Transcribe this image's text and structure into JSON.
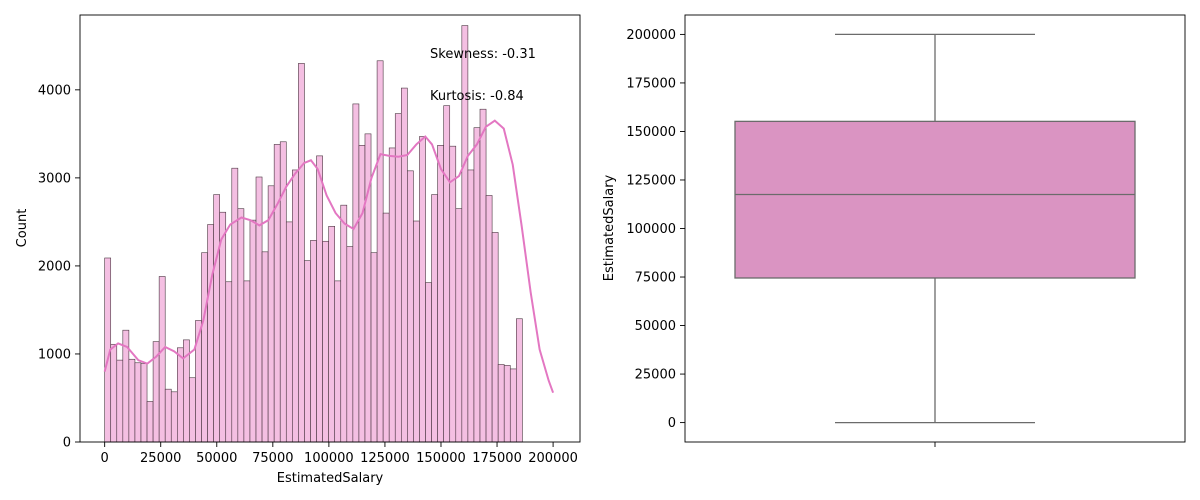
{
  "chart_data": [
    {
      "type": "histogram",
      "xlabel": "EstimatedSalary",
      "ylabel": "Count",
      "xlim": [
        -11000,
        212000
      ],
      "ylim": [
        0,
        4850
      ],
      "bin_width": 2700,
      "bin_start": 0,
      "bar_color": "#f4bfe2",
      "edge_color": "#4a3540",
      "kde_color": "#e377c2",
      "xticks": [
        0,
        25000,
        50000,
        75000,
        100000,
        125000,
        150000,
        175000,
        200000
      ],
      "yticks": [
        0,
        1000,
        2000,
        3000,
        4000
      ],
      "counts": [
        2090,
        1110,
        930,
        1270,
        940,
        900,
        890,
        460,
        1140,
        1880,
        600,
        570,
        1070,
        1160,
        730,
        1380,
        2150,
        2470,
        2810,
        2610,
        1820,
        3110,
        2650,
        1830,
        2520,
        3010,
        2160,
        2910,
        3380,
        3410,
        2500,
        3090,
        4300,
        2060,
        2290,
        3250,
        2280,
        2450,
        1830,
        2690,
        2220,
        3840,
        3370,
        3500,
        2150,
        4330,
        2600,
        3340,
        3730,
        4020,
        3080,
        2510,
        3470,
        1810,
        2810,
        3370,
        3820,
        3360,
        2650,
        4730,
        3090,
        3570,
        3780,
        2800,
        2380,
        880,
        870,
        830,
        1400
      ],
      "kde": [
        [
          0,
          800
        ],
        [
          2500,
          1050
        ],
        [
          6000,
          1120
        ],
        [
          10000,
          1080
        ],
        [
          15000,
          930
        ],
        [
          19000,
          890
        ],
        [
          23000,
          970
        ],
        [
          27000,
          1080
        ],
        [
          31000,
          1030
        ],
        [
          35000,
          950
        ],
        [
          40000,
          1050
        ],
        [
          44000,
          1380
        ],
        [
          48000,
          1900
        ],
        [
          52000,
          2300
        ],
        [
          56000,
          2470
        ],
        [
          61000,
          2550
        ],
        [
          65000,
          2520
        ],
        [
          69000,
          2460
        ],
        [
          73000,
          2520
        ],
        [
          77000,
          2700
        ],
        [
          81000,
          2900
        ],
        [
          85000,
          3050
        ],
        [
          89000,
          3170
        ],
        [
          92000,
          3200
        ],
        [
          95000,
          3100
        ],
        [
          99000,
          2800
        ],
        [
          103000,
          2600
        ],
        [
          107000,
          2480
        ],
        [
          111000,
          2420
        ],
        [
          115000,
          2600
        ],
        [
          119000,
          3000
        ],
        [
          123000,
          3270
        ],
        [
          127000,
          3250
        ],
        [
          131000,
          3240
        ],
        [
          135000,
          3260
        ],
        [
          139000,
          3380
        ],
        [
          143000,
          3470
        ],
        [
          146000,
          3380
        ],
        [
          150000,
          3100
        ],
        [
          154000,
          2950
        ],
        [
          158000,
          3020
        ],
        [
          162000,
          3250
        ],
        [
          166000,
          3380
        ],
        [
          170000,
          3580
        ],
        [
          174000,
          3650
        ],
        [
          178000,
          3560
        ],
        [
          182000,
          3150
        ],
        [
          186000,
          2450
        ],
        [
          190000,
          1700
        ],
        [
          194000,
          1050
        ],
        [
          198000,
          700
        ],
        [
          200000,
          560
        ]
      ],
      "annotations": [
        "Skewness: -0.31",
        "Kurtosis: -0.84"
      ]
    },
    {
      "type": "box",
      "ylabel": "EstimatedSalary",
      "ylim": [
        -10000,
        210000
      ],
      "yticks": [
        0,
        25000,
        50000,
        75000,
        100000,
        125000,
        150000,
        175000,
        200000
      ],
      "box_color": "#da94c2",
      "line_color": "#6b6b6b",
      "whisker_low": 0,
      "q1": 74500,
      "median": 117500,
      "q3": 155200,
      "whisker_high": 200000
    }
  ]
}
